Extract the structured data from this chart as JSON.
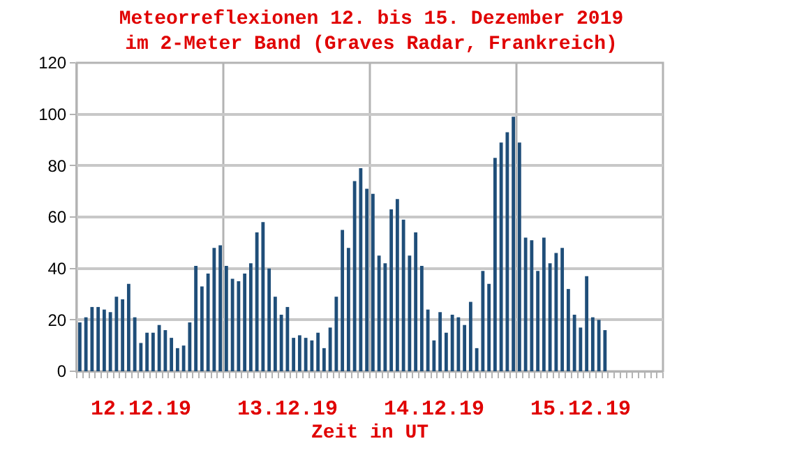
{
  "chart_data": {
    "type": "bar",
    "title": "Meteorreflexionen 12. bis 15. Dezember 2019\nim 2-Meter Band (Graves Radar, Frankreich)",
    "xlabel": "Zeit in UT",
    "categories": [
      null,
      null,
      null,
      null,
      null,
      null,
      null,
      null,
      null,
      null,
      "12.12.19",
      null,
      null,
      null,
      null,
      null,
      null,
      null,
      null,
      null,
      null,
      null,
      null,
      null,
      null,
      null,
      null,
      null,
      null,
      null,
      null,
      null,
      null,
      null,
      "13.12.19",
      null,
      null,
      null,
      null,
      null,
      null,
      null,
      null,
      null,
      null,
      null,
      null,
      null,
      null,
      null,
      null,
      null,
      null,
      null,
      null,
      null,
      null,
      null,
      "14.12.19",
      null,
      null,
      null,
      null,
      null,
      null,
      null,
      null,
      null,
      null,
      null,
      null,
      null,
      null,
      null,
      null,
      null,
      null,
      null,
      null,
      null,
      null,
      null,
      "15.12.19",
      null,
      null,
      null,
      null,
      null,
      null,
      null,
      null,
      null,
      null,
      null,
      null,
      null
    ],
    "values": [
      19,
      21,
      25,
      25,
      24,
      23,
      29,
      28,
      34,
      21,
      11,
      15,
      15,
      18,
      16,
      13,
      9,
      10,
      19,
      41,
      33,
      38,
      48,
      49,
      41,
      36,
      35,
      38,
      42,
      54,
      58,
      40,
      29,
      22,
      25,
      13,
      14,
      13,
      12,
      15,
      9,
      17,
      29,
      55,
      48,
      74,
      79,
      71,
      69,
      45,
      42,
      63,
      67,
      59,
      45,
      54,
      41,
      24,
      12,
      23,
      15,
      22,
      21,
      18,
      27,
      9,
      39,
      34,
      83,
      89,
      93,
      99,
      89,
      52,
      51,
      39,
      52,
      42,
      46,
      48,
      32,
      22,
      17,
      37,
      21,
      20,
      16,
      null,
      null,
      null,
      null,
      null,
      null,
      null,
      null,
      null
    ],
    "color": "#1f4e79",
    "ylim": [
      0,
      120
    ],
    "yticks": [
      0,
      20,
      40,
      60,
      80,
      100,
      120
    ],
    "grid": true
  }
}
